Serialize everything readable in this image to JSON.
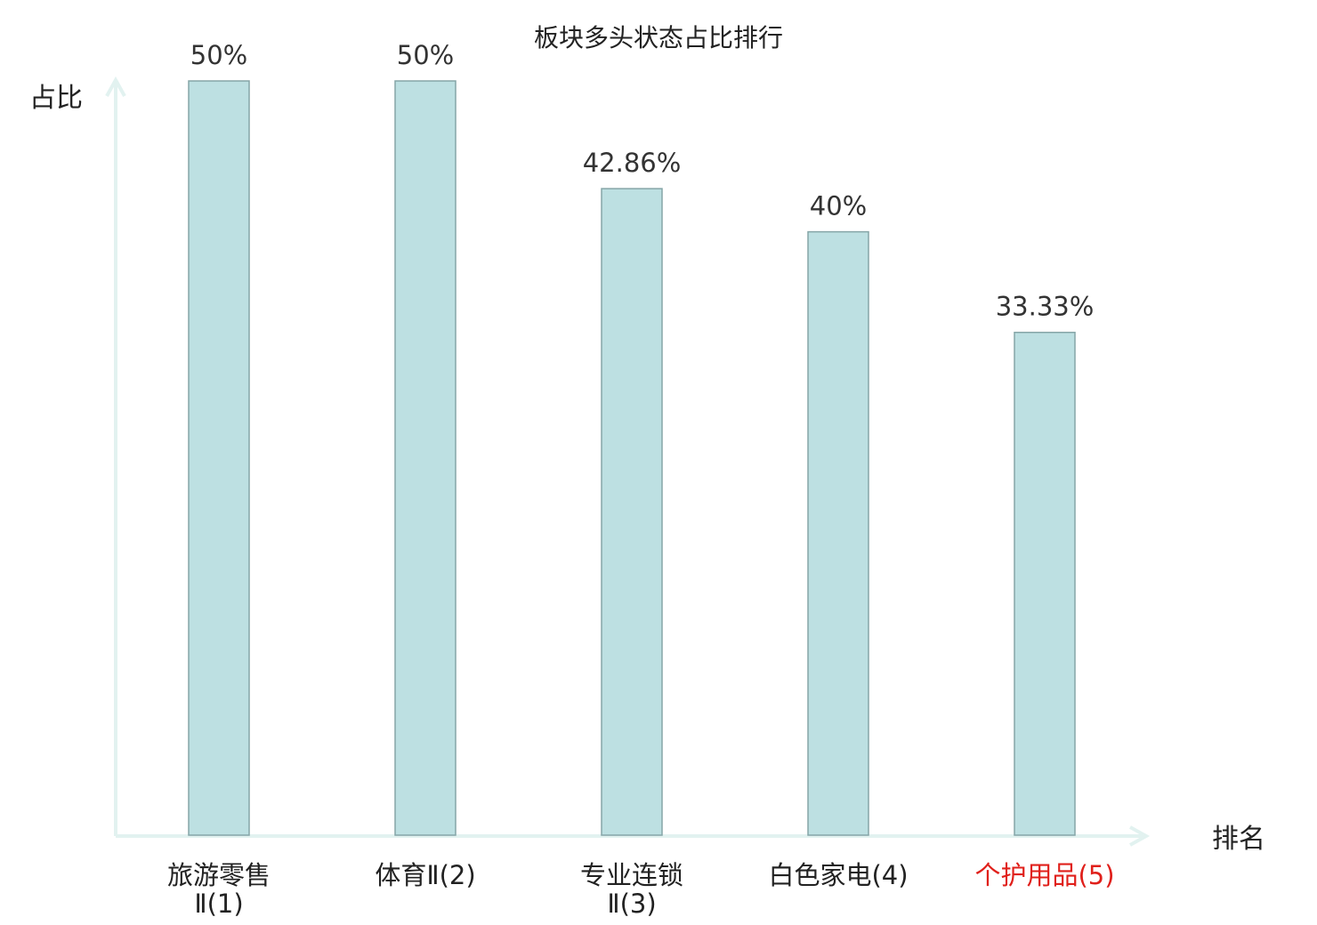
{
  "chart_data": {
    "type": "bar",
    "title": "板块多头状态占比排行",
    "xlabel": "排名",
    "ylabel": "占比",
    "categories": [
      {
        "label_lines": [
          "旅游零售",
          "Ⅱ(1)"
        ],
        "highlight": false
      },
      {
        "label_lines": [
          "体育Ⅱ(2)"
        ],
        "highlight": false
      },
      {
        "label_lines": [
          "专业连锁",
          "Ⅱ(3)"
        ],
        "highlight": false
      },
      {
        "label_lines": [
          "白色家电(4)"
        ],
        "highlight": false
      },
      {
        "label_lines": [
          "个护用品(5)"
        ],
        "highlight": true
      }
    ],
    "series": [
      {
        "values": [
          50,
          50,
          42.86,
          40,
          33.33
        ],
        "value_labels": [
          "50%",
          "50%",
          "42.86%",
          "40%",
          "33.33%"
        ]
      }
    ],
    "ylim": [
      0,
      50
    ],
    "grid": false,
    "legend": "none",
    "colors": {
      "bar_fill": "#bde0e2",
      "bar_stroke": "#85a5a7",
      "axis": "#e2f2f0",
      "text": "#222222",
      "highlight_text": "#e0201b"
    }
  }
}
